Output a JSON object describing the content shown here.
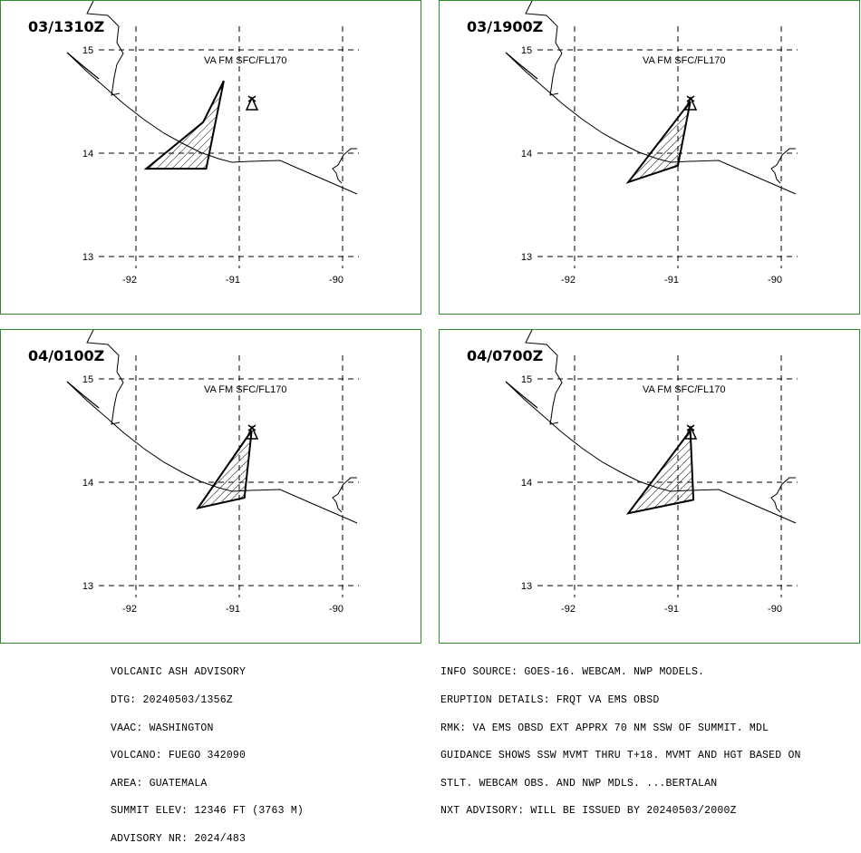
{
  "panels": [
    {
      "time": "03/1310Z",
      "label": "VA FM SFC/FL170",
      "ash_polygon": [
        [
          -91.15,
          14.7
        ],
        [
          -91.35,
          14.3
        ],
        [
          -91.9,
          13.85
        ],
        [
          -91.32,
          13.85
        ]
      ]
    },
    {
      "time": "03/1900Z",
      "label": "VA FM SFC/FL170",
      "ash_polygon": [
        [
          -90.88,
          14.5
        ],
        [
          -91.0,
          13.88
        ],
        [
          -91.48,
          13.72
        ]
      ]
    },
    {
      "time": "04/0100Z",
      "label": "VA FM SFC/FL170",
      "ash_polygon": [
        [
          -90.88,
          14.5
        ],
        [
          -90.95,
          13.85
        ],
        [
          -91.4,
          13.75
        ]
      ]
    },
    {
      "time": "04/0700Z",
      "label": "VA FM SFC/FL170",
      "ash_polygon": [
        [
          -90.88,
          14.5
        ],
        [
          -90.85,
          13.83
        ],
        [
          -91.48,
          13.7
        ]
      ]
    }
  ],
  "map": {
    "lon_ticks": [
      "-92",
      "-91",
      "-90"
    ],
    "lat_ticks": [
      "15",
      "14",
      "13"
    ],
    "volcano_symbol": "volcano-triangle-icon"
  },
  "advisory_left": [
    "VOLCANIC ASH ADVISORY",
    "DTG: 20240503/1356Z",
    "VAAC: WASHINGTON",
    "VOLCANO: FUEGO 342090",
    "AREA: GUATEMALA",
    "SUMMIT ELEV: 12346 FT (3763 M)",
    "ADVISORY NR: 2024/483"
  ],
  "advisory_right": [
    "INFO SOURCE: GOES-16. WEBCAM. NWP MODELS.",
    "ERUPTION DETAILS: FRQT VA EMS OBSD",
    "RMK: VA EMS OBSD EXT APPRX 70 NM SSW OF SUMMIT. MDL",
    "GUIDANCE SHOWS SSW MVMT THRU T+18. MVMT AND HGT BASED ON",
    "STLT. WEBCAM OBS. AND NWP MDLS. ...BERTALAN",
    "NXT ADVISORY: WILL BE ISSUED BY 20240503/2000Z"
  ]
}
